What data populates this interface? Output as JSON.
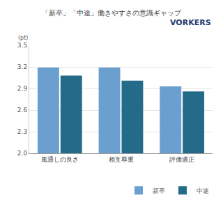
{
  "chart_data": {
    "type": "bar",
    "title": "「新卒」「中途」働きやすさの意識ギャップ",
    "ylabel": "(pt)",
    "annotations": [
      "VORKERS"
    ],
    "categories": [
      "風通しの良さ",
      "相互尊重",
      "評価適正"
    ],
    "series": [
      {
        "name": "新卒",
        "color": "#6a9fd0",
        "values": [
          3.19,
          3.19,
          2.93
        ]
      },
      {
        "name": "中途",
        "color": "#246b8a",
        "values": [
          3.08,
          3.01,
          2.86
        ]
      }
    ],
    "ylim": [
      2.0,
      3.5
    ],
    "yticks": [
      {
        "value": 2.0,
        "label": "2.0"
      },
      2.3,
      2.6,
      2.9,
      3.2,
      3.5
    ],
    "grid": true,
    "legend": "lower right"
  }
}
